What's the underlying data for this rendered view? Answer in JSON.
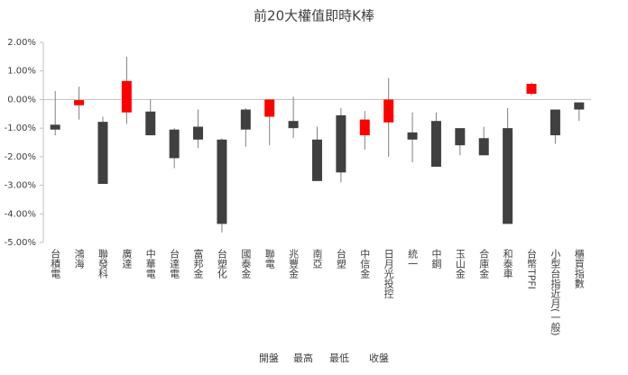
{
  "chart_data": {
    "type": "candlestick",
    "title": "前20大權值即時K棒",
    "categories": [
      "台積電",
      "鴻海",
      "聯發科",
      "廣達",
      "中華電",
      "台達電",
      "富邦金",
      "台塑化",
      "國泰金",
      "聯電",
      "兆豐金",
      "南亞",
      "台塑",
      "中信金",
      "日月光投控",
      "統一",
      "中鋼",
      "玉山金",
      "合庫金",
      "和泰車",
      "台幣TPFI",
      "小型台指近月(一般)",
      "櫃買指數"
    ],
    "series": [
      {
        "name": "開盤",
        "values": [
          -0.88,
          -0.2,
          -0.78,
          -0.45,
          -0.42,
          -1.05,
          -0.95,
          -1.4,
          -0.35,
          -0.6,
          -0.75,
          -1.4,
          -0.55,
          -1.25,
          -0.8,
          -1.15,
          -0.75,
          -1.0,
          -1.35,
          -1.0,
          0.2,
          -0.35,
          -0.1
        ]
      },
      {
        "name": "最高",
        "values": [
          0.3,
          0.45,
          -0.6,
          1.5,
          0.0,
          -1.0,
          -0.35,
          -1.35,
          -0.3,
          0.0,
          0.1,
          -0.95,
          -0.3,
          -0.4,
          0.75,
          -0.45,
          -0.45,
          -1.0,
          -0.95,
          -0.3,
          0.6,
          -0.35,
          -0.1
        ]
      },
      {
        "name": "最低",
        "values": [
          -1.25,
          -0.7,
          -2.95,
          -0.85,
          -1.25,
          -2.4,
          -1.7,
          -4.65,
          -1.65,
          -1.6,
          -1.35,
          -2.85,
          -2.9,
          -1.75,
          -2.0,
          -2.2,
          -2.35,
          -1.95,
          -1.95,
          -4.35,
          0.15,
          -1.55,
          -0.75
        ]
      },
      {
        "name": "收盤",
        "values": [
          -1.05,
          -0.02,
          -2.95,
          0.65,
          -1.25,
          -2.05,
          -1.4,
          -4.35,
          -1.05,
          0.0,
          -1.0,
          -2.85,
          -2.55,
          -0.7,
          0.0,
          -1.4,
          -2.35,
          -1.6,
          -1.95,
          -4.35,
          0.55,
          -1.25,
          -0.35
        ]
      }
    ],
    "up_color": "#ff0000",
    "down_color": "#404040",
    "ylim": [
      -5,
      2
    ],
    "yticks": [
      {
        "value": -5,
        "label": "-5.00%"
      },
      {
        "value": -4,
        "label": "-4.00%"
      },
      {
        "value": -3,
        "label": "-3.00%"
      },
      {
        "value": -2,
        "label": "-2.00%"
      },
      {
        "value": -1,
        "label": "-1.00%"
      },
      {
        "value": 0,
        "label": "0.00%"
      },
      {
        "value": 1,
        "label": "1.00%"
      },
      {
        "value": 2,
        "label": "2.00%"
      }
    ],
    "grid": false
  }
}
